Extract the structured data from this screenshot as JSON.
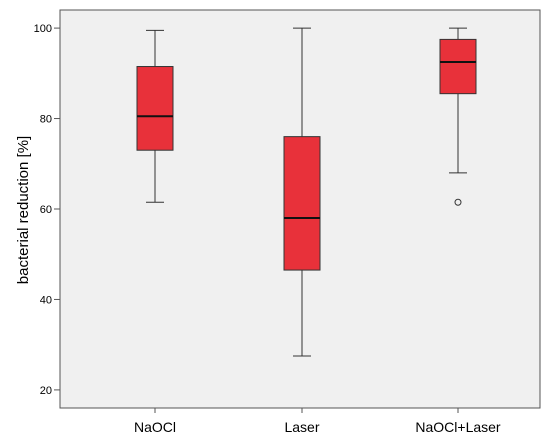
{
  "chart_data": {
    "type": "boxplot",
    "title": "",
    "xlabel": "",
    "ylabel": "bacterial reduction [%]",
    "ylim": [
      16,
      104
    ],
    "yticks": [
      20,
      40,
      60,
      80,
      100
    ],
    "grid": false,
    "legend": "none",
    "categories": [
      "NaOCl",
      "Laser",
      "NaOCl+Laser"
    ],
    "boxes": [
      {
        "category": "NaOCl",
        "min": 61.5,
        "q1": 73,
        "median": 80.5,
        "q3": 91.5,
        "max": 99.5,
        "outliers": []
      },
      {
        "category": "Laser",
        "min": 27.5,
        "q1": 46.5,
        "median": 58,
        "q3": 76,
        "max": 100,
        "outliers": []
      },
      {
        "category": "NaOCl+Laser",
        "min": 68,
        "q1": 85.5,
        "median": 92.5,
        "q3": 97.5,
        "max": 100,
        "outliers": [
          61.5
        ]
      }
    ],
    "colors": {
      "box_fill": "#e8313a",
      "box_stroke": "#333333",
      "plot_bg": "#f0f0f0",
      "frame": "#555555"
    }
  }
}
